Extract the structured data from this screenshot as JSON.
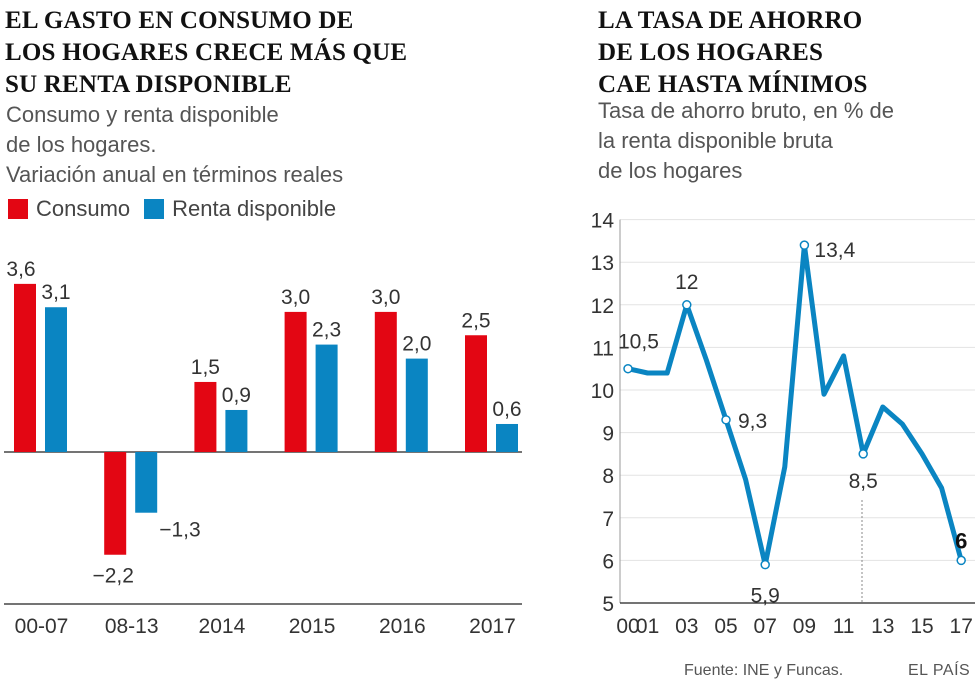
{
  "left": {
    "title_lines": [
      "EL GASTO EN CONSUMO DE",
      "LOS HOGARES CRECE MÁS QUE",
      "SU RENTA DISPONIBLE"
    ],
    "subtitle_lines": [
      "Consumo y renta disponible",
      "de los hogares.",
      "Variación anual en términos reales"
    ],
    "legend": [
      {
        "label": "Consumo",
        "color": "#e30613"
      },
      {
        "label": "Renta disponible",
        "color": "#0a85c2"
      }
    ]
  },
  "right": {
    "title_lines": [
      "LA TASA DE AHORRO",
      "DE LOS HOGARES",
      "CAE HASTA MÍNIMOS"
    ],
    "subtitle_lines": [
      "Tasa de ahorro bruto, en % de",
      "la renta disponible bruta",
      "de los hogares"
    ]
  },
  "chart_data": [
    {
      "type": "bar",
      "title": "EL GASTO EN CONSUMO DE LOS HOGARES CRECE MÁS QUE SU RENTA DISPONIBLE",
      "categories": [
        "00-07",
        "08-13",
        "2014",
        "2015",
        "2016",
        "2017"
      ],
      "series": [
        {
          "name": "Consumo",
          "color": "#e30613",
          "values": [
            3.6,
            -2.2,
            1.5,
            3.0,
            3.0,
            2.5
          ],
          "labels": [
            "3,6",
            "−2,2",
            "1,5",
            "3,0",
            "3,0",
            "2,5"
          ]
        },
        {
          "name": "Renta disponible",
          "color": "#0a85c2",
          "values": [
            3.1,
            -1.3,
            0.9,
            2.3,
            2.0,
            0.6
          ],
          "labels": [
            "3,1",
            "−1,3",
            "0,9",
            "2,3",
            "2,0",
            "0,6"
          ]
        }
      ],
      "ylim": [
        -2.7,
        4.8
      ],
      "xlabel": "",
      "ylabel": ""
    },
    {
      "type": "line",
      "title": "LA TASA DE AHORRO DE LOS HOGARES CAE HASTA MÍNIMOS",
      "color": "#0a85c2",
      "x": [
        2000,
        2001,
        2002,
        2003,
        2004,
        2005,
        2006,
        2007,
        2008,
        2009,
        2010,
        2011,
        2012,
        2013,
        2014,
        2015,
        2016,
        2017
      ],
      "values": [
        10.5,
        10.4,
        10.4,
        12.0,
        10.7,
        9.3,
        7.9,
        5.9,
        8.2,
        13.4,
        9.9,
        10.8,
        8.5,
        9.6,
        9.2,
        8.5,
        7.7,
        6.0
      ],
      "point_labels": [
        {
          "x": 2000,
          "text": "10,5"
        },
        {
          "x": 2003,
          "text": "12"
        },
        {
          "x": 2005,
          "text": "9,3"
        },
        {
          "x": 2007,
          "text": "5,9"
        },
        {
          "x": 2009,
          "text": "13,4"
        },
        {
          "x": 2012,
          "text": "8,5"
        },
        {
          "x": 2017,
          "text": "6",
          "bold": true
        }
      ],
      "yticks": [
        "5",
        "6",
        "7",
        "8",
        "9",
        "10",
        "11",
        "12",
        "13",
        "14"
      ],
      "xtick_labels": [
        "00",
        "01",
        "03",
        "05",
        "07",
        "09",
        "11",
        "13",
        "15",
        "17"
      ],
      "xtick_years": [
        2000,
        2001,
        2003,
        2005,
        2007,
        2009,
        2011,
        2013,
        2015,
        2017
      ],
      "ylim": [
        5,
        14
      ],
      "xlim": [
        2000,
        2017
      ],
      "xlabel": "",
      "ylabel": ""
    }
  ],
  "footer": {
    "source": "Fuente: INE y Funcas.",
    "brand": "EL PAÍS"
  }
}
